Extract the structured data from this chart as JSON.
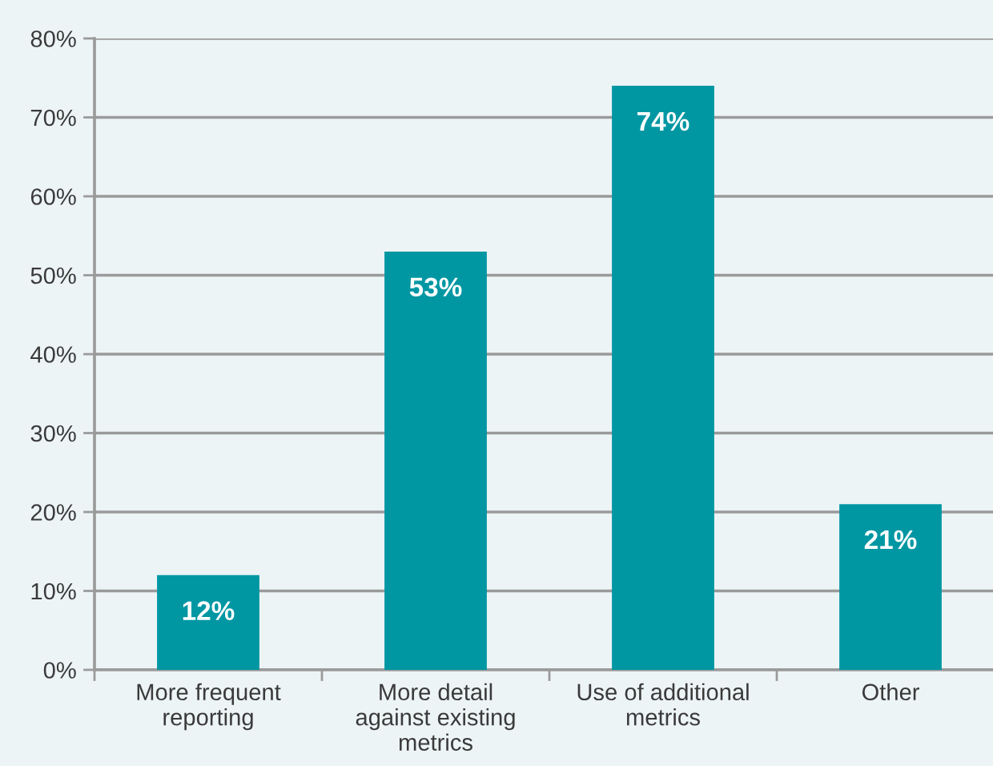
{
  "chart_data": {
    "type": "bar",
    "categories": [
      "More frequent\nreporting",
      "More detail\nagainst existing\nmetrics",
      "Use of additional\nmetrics",
      "Other"
    ],
    "values": [
      12,
      53,
      74,
      21
    ],
    "color": "#0097a3",
    "value_labels": [
      "12%",
      "53%",
      "74%",
      "21%"
    ],
    "ylim": [
      0,
      80
    ],
    "yticks": [
      {
        "value": 0,
        "label": "0%"
      },
      {
        "value": 10,
        "label": "10%"
      },
      {
        "value": 20,
        "label": "20%"
      },
      {
        "value": 30,
        "label": "30%"
      },
      {
        "value": 40,
        "label": "40%"
      },
      {
        "value": 50,
        "label": "50%"
      },
      {
        "value": 60,
        "label": "60%"
      },
      {
        "value": 70,
        "label": "70%"
      },
      {
        "value": 80,
        "label": "80%"
      }
    ],
    "grid": "y"
  }
}
